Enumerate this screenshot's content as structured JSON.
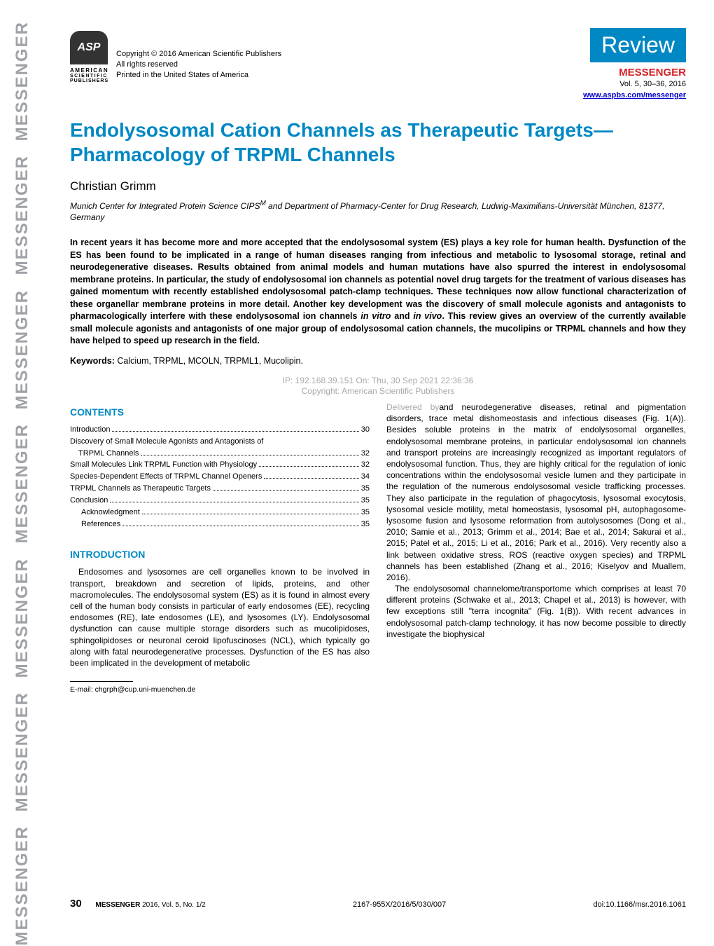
{
  "sidebar": {
    "text": "MESSENGER",
    "color": "#9fa2a7",
    "repeat_count": 7
  },
  "publisher": {
    "logo_text": "ASP",
    "logo_bg": "#333333",
    "line1": "AMERICAN",
    "line2": "SCIENTIFIC",
    "line3": "PUBLISHERS",
    "copyright": "Copyright © 2016 American Scientific Publishers",
    "rights": "All rights reserved",
    "printed": "Printed in the United States of America"
  },
  "header_right": {
    "badge": "Review",
    "badge_bg": "#0088c4",
    "journal": "MESSENGER",
    "journal_color": "#d62128",
    "volume": "Vol. 5, 30–36, 2016",
    "url": "www.aspbs.com/messenger"
  },
  "article": {
    "title": "Endolysosomal Cation Channels as Therapeutic Targets—Pharmacology of TRPML Channels",
    "title_color": "#0088c4",
    "author": "Christian Grimm",
    "affiliation_html": "Munich Center for Integrated Protein Science CIPS<sup>M</sup> and Department of Pharmacy-Center for Drug Research, Ludwig-Maximilians-Universität München, 81377, Germany",
    "abstract_html": "In recent years it has become more and more accepted that the endolysosomal system (ES) plays a key role for human health. Dysfunction of the ES has been found to be implicated in a range of human diseases ranging from infectious and metabolic to lysosomal storage, retinal and neurodegenerative diseases. Results obtained from animal models and human mutations have also spurred the interest in endolysosomal membrane proteins. In particular, the study of endolysosomal ion channels as potential novel drug targets for the treatment of various diseases has gained momentum with recently established endolysosomal patch-clamp techniques. These techniques now allow functional characterization of these organellar membrane proteins in more detail. Another key development was the discovery of small molecule agonists and antagonists to pharmacologically interfere with these endolysosomal ion channels <i>in vitro</i> and <i>in vivo</i>. This review gives an overview of the currently available small molecule agonists and antagonists of one major group of endolysosomal cation channels, the mucolipins or TRPML channels and how they have helped to speed up research in the field.",
    "keywords_label": "Keywords:",
    "keywords": "Calcium, TRPML, MCOLN, TRPML1, Mucolipin."
  },
  "watermark": {
    "line1": "IP: 192.168.39.151 On: Thu, 30 Sep 2021 22:36:36",
    "line2": "Copyright: American Scientific Publishers",
    "line3_prefix": "Delivered by",
    "color": "#a8a8a8"
  },
  "contents": {
    "heading": "CONTENTS",
    "items": [
      {
        "label": "Introduction",
        "page": "30",
        "indent": 0
      },
      {
        "label": "Discovery of Small Molecule Agonists and Antagonists of TRPML Channels",
        "page": "32",
        "indent": 0,
        "wrap": true,
        "label1": "Discovery of Small Molecule Agonists and Antagonists of",
        "label2": "TRPML Channels"
      },
      {
        "label": "Small Molecules Link TRPML Function with Physiology",
        "page": "32",
        "indent": 0
      },
      {
        "label": "Species-Dependent Effects of TRPML Channel Openers",
        "page": "34",
        "indent": 0
      },
      {
        "label": "TRPML Channels as Therapeutic Targets",
        "page": "35",
        "indent": 0
      },
      {
        "label": "Conclusion",
        "page": "35",
        "indent": 0
      },
      {
        "label": "Acknowledgment",
        "page": "35",
        "indent": 1
      },
      {
        "label": "References",
        "page": "35",
        "indent": 1
      }
    ]
  },
  "intro": {
    "heading": "INTRODUCTION",
    "left_para": "Endosomes and lysosomes are cell organelles known to be involved in transport, breakdown and secretion of lipids, proteins, and other macromolecules. The endolysosomal system (ES) as it is found in almost every cell of the human body consists in particular of early endosomes (EE), recycling endosomes (RE), late endosomes (LE), and lysosomes (LY). Endolysosomal dysfunction can cause multiple storage disorders such as mucolipidoses, sphingolipidoses or neuronal ceroid lipofuscinoses (NCL), which typically go along with fatal neurodegenerative processes. Dysfunction of the ES has also been implicated in the development of metabolic",
    "right_para1_lead": "and neurodegenerative",
    "right_para1": " diseases, retinal and pigmentation disorders, trace metal dishomeostasis and infectious diseases (Fig. 1(A)). Besides soluble proteins in the matrix of endolysosomal organelles, endolysosomal membrane proteins, in particular endolysosomal ion channels and transport proteins are increasingly recognized as important regulators of endolysosomal function. Thus, they are highly critical for the regulation of ionic concentrations within the endolysosomal vesicle lumen and they participate in the regulation of the numerous endolysosomal vesicle trafficking processes. They also participate in the regulation of phagocytosis, lysosomal exocytosis, lysosomal vesicle motility, metal homeostasis, lysosomal pH, autophagosome-lysosome fusion and lysosome reformation from autolysosomes (Dong et al., 2010; Samie et al., 2013; Grimm et al., 2014; Bae et al., 2014; Sakurai et al., 2015; Patel et al., 2015; Li et al., 2016; Park et al., 2016). Very recently also a link between oxidative stress, ROS (reactive oxygen species) and TRPML channels has been established (Zhang et al., 2016; Kiselyov and Muallem, 2016).",
    "right_para2": "The endolysosomal channelome/transportome which comprises at least 70 different proteins (Schwake et al., 2013; Chapel et al., 2013) is however, with few exceptions still \"terra incognita\" (Fig. 1(B)). With recent advances in endolysosomal patch-clamp technology, it has now become possible to directly investigate the biophysical"
  },
  "footnote": {
    "email": "E-mail: chgrph@cup.uni-muenchen.de"
  },
  "footer": {
    "page": "30",
    "journal": "MESSENGER",
    "journal_info": " 2016, Vol. 5, No. 1/2",
    "issn": "2167-955X/2016/5/030/007",
    "doi": "doi:10.1166/msr.2016.1061"
  }
}
